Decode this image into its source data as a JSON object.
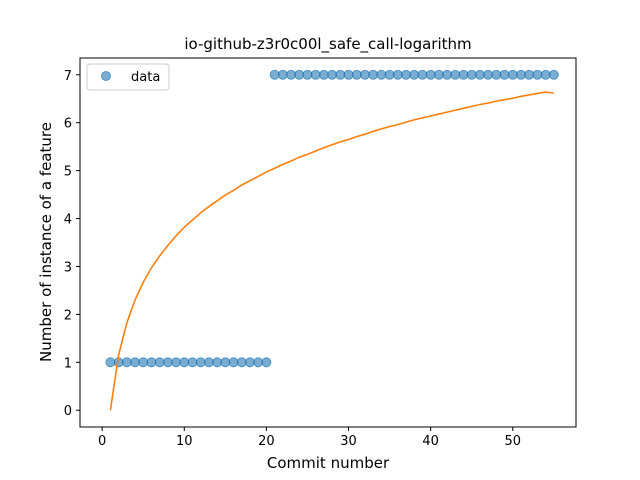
{
  "chart_data": {
    "type": "scatter",
    "title": "io-github-z3r0c00l_safe_call-logarithm",
    "xlabel": "Commit number",
    "ylabel": "Number of instance of a feature",
    "xlim": [
      -2.7,
      57.7
    ],
    "ylim": [
      -0.35,
      7.35
    ],
    "xticks": [
      0,
      10,
      20,
      30,
      40,
      50
    ],
    "yticks": [
      0,
      1,
      2,
      3,
      4,
      5,
      6,
      7
    ],
    "legend_position": "top-left",
    "series": [
      {
        "name": "data",
        "kind": "scatter",
        "color": "#1f77b4",
        "x": [
          1,
          2,
          3,
          4,
          5,
          6,
          7,
          8,
          9,
          10,
          11,
          12,
          13,
          14,
          15,
          16,
          17,
          18,
          19,
          20,
          21,
          22,
          23,
          24,
          25,
          26,
          27,
          28,
          29,
          30,
          31,
          32,
          33,
          34,
          35,
          36,
          37,
          38,
          39,
          40,
          41,
          42,
          43,
          44,
          45,
          46,
          47,
          48,
          49,
          50,
          51,
          52,
          53,
          54,
          55
        ],
        "y": [
          1,
          1,
          1,
          1,
          1,
          1,
          1,
          1,
          1,
          1,
          1,
          1,
          1,
          1,
          1,
          1,
          1,
          1,
          1,
          1,
          7,
          7,
          7,
          7,
          7,
          7,
          7,
          7,
          7,
          7,
          7,
          7,
          7,
          7,
          7,
          7,
          7,
          7,
          7,
          7,
          7,
          7,
          7,
          7,
          7,
          7,
          7,
          7,
          7,
          7,
          7,
          7,
          7,
          7,
          7
        ]
      },
      {
        "kind": "line",
        "color": "#ff7f0e",
        "x": [
          1,
          2,
          3,
          4,
          5,
          6,
          7,
          8,
          9,
          10,
          11,
          12,
          13,
          14,
          15,
          16,
          17,
          18,
          19,
          20,
          21,
          22,
          23,
          24,
          25,
          26,
          27,
          28,
          29,
          30,
          31,
          32,
          33,
          34,
          35,
          36,
          37,
          38,
          39,
          40,
          41,
          42,
          43,
          44,
          45,
          46,
          47,
          48,
          49,
          50,
          51,
          52,
          53,
          54,
          55
        ],
        "y": [
          0,
          1.15,
          1.82,
          2.3,
          2.67,
          2.97,
          3.22,
          3.44,
          3.64,
          3.82,
          3.97,
          4.12,
          4.25,
          4.37,
          4.49,
          4.59,
          4.7,
          4.79,
          4.88,
          4.97,
          5.05,
          5.13,
          5.2,
          5.28,
          5.34,
          5.41,
          5.48,
          5.54,
          5.6,
          5.65,
          5.71,
          5.76,
          5.82,
          5.87,
          5.92,
          5.96,
          6.01,
          6.06,
          6.1,
          6.14,
          6.18,
          6.22,
          6.26,
          6.3,
          6.34,
          6.38,
          6.41,
          6.45,
          6.48,
          6.51,
          6.55,
          6.58,
          6.61,
          6.64,
          6.62
        ]
      }
    ]
  }
}
